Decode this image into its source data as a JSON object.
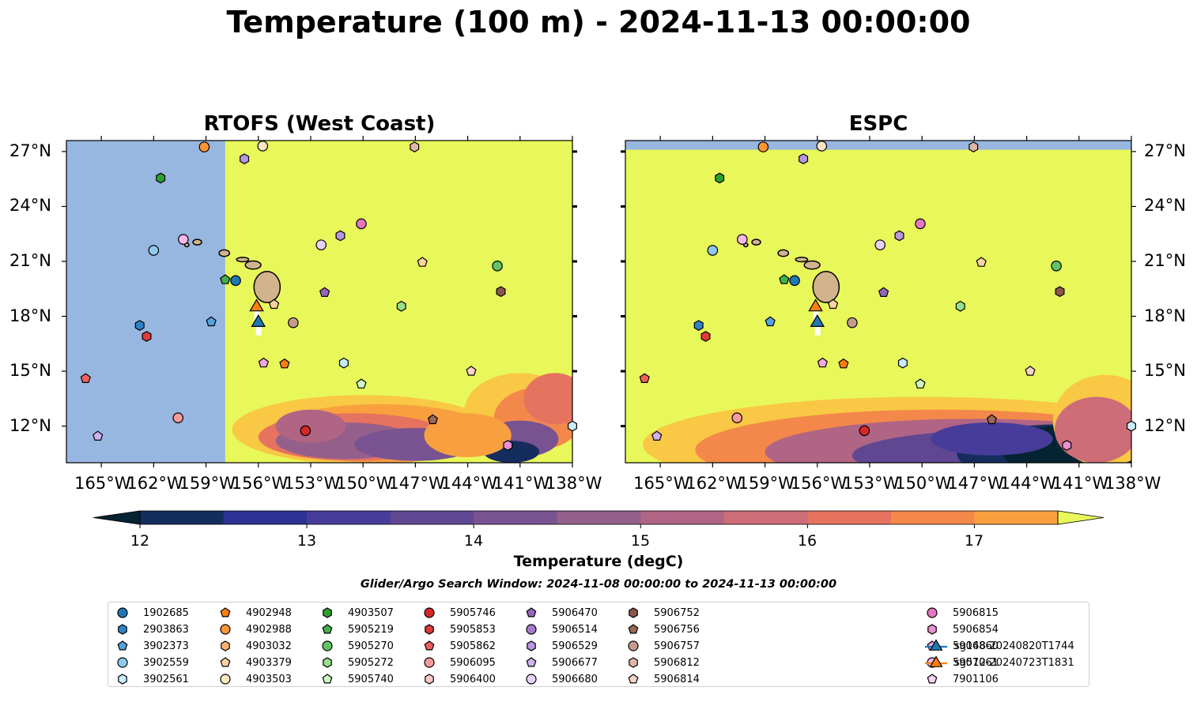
{
  "title": "Temperature (100 m) - 2024-11-13 00:00:00",
  "panels": [
    {
      "title": "RTOFS (West Coast)"
    },
    {
      "title": "ESPC"
    }
  ],
  "map": {
    "lon_range": [
      -167,
      -138
    ],
    "lat_range": [
      10,
      27.6
    ],
    "x_ticks": [
      "165°W",
      "162°W",
      "159°W",
      "156°W",
      "153°W",
      "150°W",
      "147°W",
      "144°W",
      "141°W",
      "138°W"
    ],
    "x_tick_values": [
      -165,
      -162,
      -159,
      -156,
      -153,
      -150,
      -147,
      -144,
      -141,
      -138
    ],
    "y_ticks": [
      "27°N",
      "24°N",
      "21°N",
      "18°N",
      "15°N",
      "12°N"
    ],
    "y_tick_values": [
      27,
      24,
      21,
      18,
      15,
      12
    ],
    "land_color": "#d2b48c",
    "nodata_color": "#97b6e0",
    "rtofs_nodata_west_of": -157.9,
    "espc_nodata_north_of": 27.1
  },
  "colorbar": {
    "label": "Temperature (degC)",
    "ticks": [
      "12",
      "13",
      "14",
      "15",
      "16",
      "17"
    ],
    "min": 12,
    "max": 17.5,
    "step": 0.5,
    "colors": [
      "#042333",
      "#152d5e",
      "#2c3395",
      "#473c9a",
      "#604792",
      "#795391",
      "#94608b",
      "#b06585",
      "#cd6d78",
      "#e5735f",
      "#f3884a",
      "#f8a03f",
      "#f9c844",
      "#e8f85a"
    ]
  },
  "search_window": "Glider/Argo Search Window: 2024-11-08 00:00:00 to 2024-11-13 00:00:00",
  "legend": [
    {
      "id": "1902685",
      "color": "#1f77b4",
      "shape": "circle"
    },
    {
      "id": "2903863",
      "color": "#2f83c8",
      "shape": "hexagon"
    },
    {
      "id": "3902373",
      "color": "#55a3e0",
      "shape": "pentagon"
    },
    {
      "id": "3902559",
      "color": "#8ec9f0",
      "shape": "circle"
    },
    {
      "id": "3902561",
      "color": "#c6ecfb",
      "shape": "hexagon"
    },
    {
      "id": "4902948",
      "color": "#ff7f0e",
      "shape": "pentagon"
    },
    {
      "id": "4902988",
      "color": "#ff9534",
      "shape": "circle"
    },
    {
      "id": "4903032",
      "color": "#ffb36e",
      "shape": "hexagon"
    },
    {
      "id": "4903379",
      "color": "#ffd49e",
      "shape": "pentagon"
    },
    {
      "id": "4903503",
      "color": "#ffe4c2",
      "shape": "circle"
    },
    {
      "id": "4903507",
      "color": "#2ca02c",
      "shape": "hexagon"
    },
    {
      "id": "5905219",
      "color": "#42b04a",
      "shape": "pentagon"
    },
    {
      "id": "5905270",
      "color": "#62c462",
      "shape": "circle"
    },
    {
      "id": "5905272",
      "color": "#97df8a",
      "shape": "hexagon"
    },
    {
      "id": "5905740",
      "color": "#ccf7c0",
      "shape": "pentagon"
    },
    {
      "id": "5905746",
      "color": "#d62728",
      "shape": "circle"
    },
    {
      "id": "5905853",
      "color": "#e03a3a",
      "shape": "hexagon"
    },
    {
      "id": "5905862",
      "color": "#f06060",
      "shape": "pentagon"
    },
    {
      "id": "5906095",
      "color": "#f79a9a",
      "shape": "circle"
    },
    {
      "id": "5906400",
      "color": "#fbc9c9",
      "shape": "hexagon"
    },
    {
      "id": "5906470",
      "color": "#9467bd",
      "shape": "pentagon"
    },
    {
      "id": "5906514",
      "color": "#a57bd0",
      "shape": "circle"
    },
    {
      "id": "5906529",
      "color": "#b895e0",
      "shape": "hexagon"
    },
    {
      "id": "5906677",
      "color": "#cfb2f0",
      "shape": "pentagon"
    },
    {
      "id": "5906680",
      "color": "#e4d2fb",
      "shape": "circle"
    },
    {
      "id": "5906752",
      "color": "#8c564b",
      "shape": "hexagon"
    },
    {
      "id": "5906756",
      "color": "#9c6658",
      "shape": "pentagon"
    },
    {
      "id": "5906757",
      "color": "#c49c8d",
      "shape": "circle"
    },
    {
      "id": "5906812",
      "color": "#e0b6a6",
      "shape": "hexagon"
    },
    {
      "id": "5906814",
      "color": "#f6d4c6",
      "shape": "pentagon"
    },
    {
      "id": "5906815",
      "color": "#e377c2",
      "shape": "circle"
    },
    {
      "id": "5906854",
      "color": "#ea8fd2",
      "shape": "hexagon"
    },
    {
      "id": "5906860",
      "color": "#f1a6de",
      "shape": "pentagon"
    },
    {
      "id": "5907061",
      "color": "#f7b6e8",
      "shape": "circle"
    },
    {
      "id": "7901106",
      "color": "#fbd3f0",
      "shape": "pentagon"
    },
    {
      "id": "sg148-20240820T1744",
      "color": "#1f77b4",
      "shape": "triangle"
    },
    {
      "id": "sg512-20240723T1831",
      "color": "#ff7f0e",
      "shape": "triangle"
    }
  ],
  "markers": [
    {
      "id": "4902988",
      "lon": -159.1,
      "lat": 27.25
    },
    {
      "id": "4903503",
      "lon": -155.75,
      "lat": 27.3
    },
    {
      "id": "5906812",
      "lon": -147.05,
      "lat": 27.25
    },
    {
      "id": "5906529",
      "lon": -156.8,
      "lat": 26.6
    },
    {
      "id": "4903507",
      "lon": -161.6,
      "lat": 25.55
    },
    {
      "id": "5906815",
      "lon": -150.1,
      "lat": 23.05
    },
    {
      "id": "5906529",
      "lon": -151.3,
      "lat": 22.4
    },
    {
      "id": "5907061",
      "lon": -160.3,
      "lat": 22.2
    },
    {
      "id": "5906680",
      "lon": -152.4,
      "lat": 21.9
    },
    {
      "id": "3902559",
      "lon": -162.0,
      "lat": 21.6
    },
    {
      "id": "4903379",
      "lon": -146.6,
      "lat": 20.95
    },
    {
      "id": "5905270",
      "lon": -142.3,
      "lat": 20.75
    },
    {
      "id": "5905219",
      "lon": -157.9,
      "lat": 20.0
    },
    {
      "id": "1902685",
      "lon": -157.3,
      "lat": 19.95
    },
    {
      "id": "5906470",
      "lon": -152.2,
      "lat": 19.3
    },
    {
      "id": "5906752",
      "lon": -142.1,
      "lat": 19.35
    },
    {
      "id": "4903379",
      "lon": -155.1,
      "lat": 18.65
    },
    {
      "id": "5905272",
      "lon": -147.8,
      "lat": 18.55
    },
    {
      "id": "5906757",
      "lon": -154.0,
      "lat": 17.65
    },
    {
      "id": "3902373",
      "lon": -158.7,
      "lat": 17.7
    },
    {
      "id": "2903863",
      "lon": -162.8,
      "lat": 17.5
    },
    {
      "id": "5905853",
      "lon": -162.4,
      "lat": 16.9
    },
    {
      "id": "5906860",
      "lon": -155.7,
      "lat": 15.45
    },
    {
      "id": "4902948",
      "lon": -154.5,
      "lat": 15.4
    },
    {
      "id": "3902561",
      "lon": -151.1,
      "lat": 15.45
    },
    {
      "id": "5906814",
      "lon": -143.8,
      "lat": 15.0
    },
    {
      "id": "5905862",
      "lon": -165.9,
      "lat": 14.6
    },
    {
      "id": "5905740",
      "lon": -150.1,
      "lat": 14.3
    },
    {
      "id": "5906095",
      "lon": -160.6,
      "lat": 12.45
    },
    {
      "id": "5906756",
      "lon": -146.0,
      "lat": 12.35
    },
    {
      "id": "5905746",
      "lon": -153.3,
      "lat": 11.75
    },
    {
      "id": "3902561",
      "lon": -138.0,
      "lat": 12.0
    },
    {
      "id": "5906677",
      "lon": -165.2,
      "lat": 11.45
    },
    {
      "id": "5906854",
      "lon": -141.7,
      "lat": 10.95
    }
  ],
  "glider_tracks": [
    {
      "id": "sg512-20240723T1831",
      "color": "#ff7f0e",
      "lon": -156.1,
      "lat": 18.5
    },
    {
      "id": "sg148-20240820T1744",
      "color": "#1f77b4",
      "lon": -156.0,
      "lat": 17.65
    }
  ]
}
